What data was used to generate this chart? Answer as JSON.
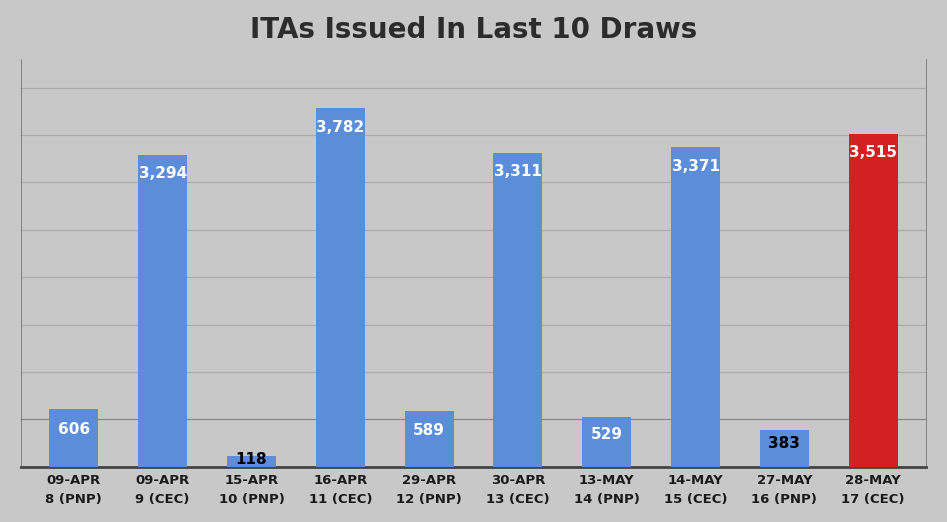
{
  "title": "ITAs Issued In Last 10 Draws",
  "categories": [
    "09-APR\n8 (PNP)",
    "09-APR\n9 (CEC)",
    "15-APR\n10 (PNP)",
    "16-APR\n11 (CEC)",
    "29-APR\n12 (PNP)",
    "30-APR\n13 (CEC)",
    "13-MAY\n14 (PNP)",
    "14-MAY\n15 (CEC)",
    "27-MAY\n16 (PNP)",
    "28-MAY\n17 (CEC)"
  ],
  "values": [
    606,
    3294,
    118,
    3782,
    589,
    3311,
    529,
    3371,
    383,
    3515
  ],
  "bar_colors": [
    "#5B8DD9",
    "#5B8DD9",
    "#5B8DD9",
    "#5B8DD9",
    "#5B8DD9",
    "#5B8DD9",
    "#5B8DD9",
    "#5B8DD9",
    "#5B8DD9",
    "#D42020"
  ],
  "label_colors_inside": [
    "white",
    "white",
    "black",
    "white",
    "white",
    "white",
    "white",
    "white",
    "black",
    "white"
  ],
  "title_fontsize": 20,
  "tick_fontsize": 9.5,
  "label_fontsize": 11,
  "ylim": [
    0,
    4300
  ],
  "background_color": "#C8C8C8",
  "plot_bg_color": "#C8C8C8",
  "grid_color": "#AAAAAA",
  "refline_y": 500,
  "refline_color": "#888888"
}
